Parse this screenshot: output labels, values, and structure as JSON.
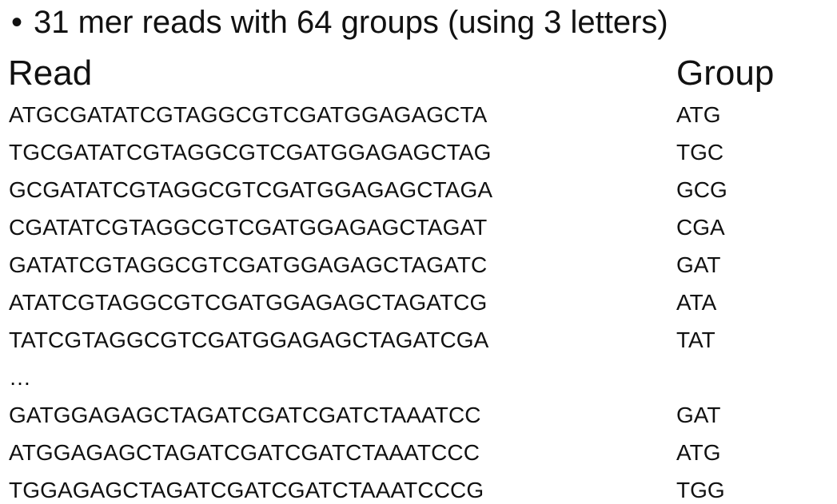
{
  "title": {
    "bullet": "•",
    "text": "31 mer reads with 64 groups (using 3 letters)"
  },
  "table": {
    "headers": {
      "read": "Read",
      "group": "Group"
    },
    "rows": [
      {
        "read": "ATGCGATATCGTAGGCGTCGATGGAGAGCTA",
        "group": "ATG"
      },
      {
        "read": "TGCGATATCGTAGGCGTCGATGGAGAGCTAG",
        "group": "TGC"
      },
      {
        "read": "GCGATATCGTAGGCGTCGATGGAGAGCTAGA",
        "group": "GCG"
      },
      {
        "read": "CGATATCGTAGGCGTCGATGGAGAGCTAGAT",
        "group": "CGA"
      },
      {
        "read": "GATATCGTAGGCGTCGATGGAGAGCTAGATC",
        "group": "GAT"
      },
      {
        "read": "ATATCGTAGGCGTCGATGGAGAGCTAGATCG",
        "group": "ATA"
      },
      {
        "read": "TATCGTAGGCGTCGATGGAGAGCTAGATCGA",
        "group": "TAT"
      },
      {
        "read": "…",
        "group": ""
      },
      {
        "read": "GATGGAGAGCTAGATCGATCGATCTAAATCC",
        "group": "GAT"
      },
      {
        "read": "ATGGAGAGCTAGATCGATCGATCTAAATCCC",
        "group": "ATG"
      },
      {
        "read": "TGGAGAGCTAGATCGATCGATCTAAATCCCG",
        "group": "TGG"
      }
    ]
  }
}
